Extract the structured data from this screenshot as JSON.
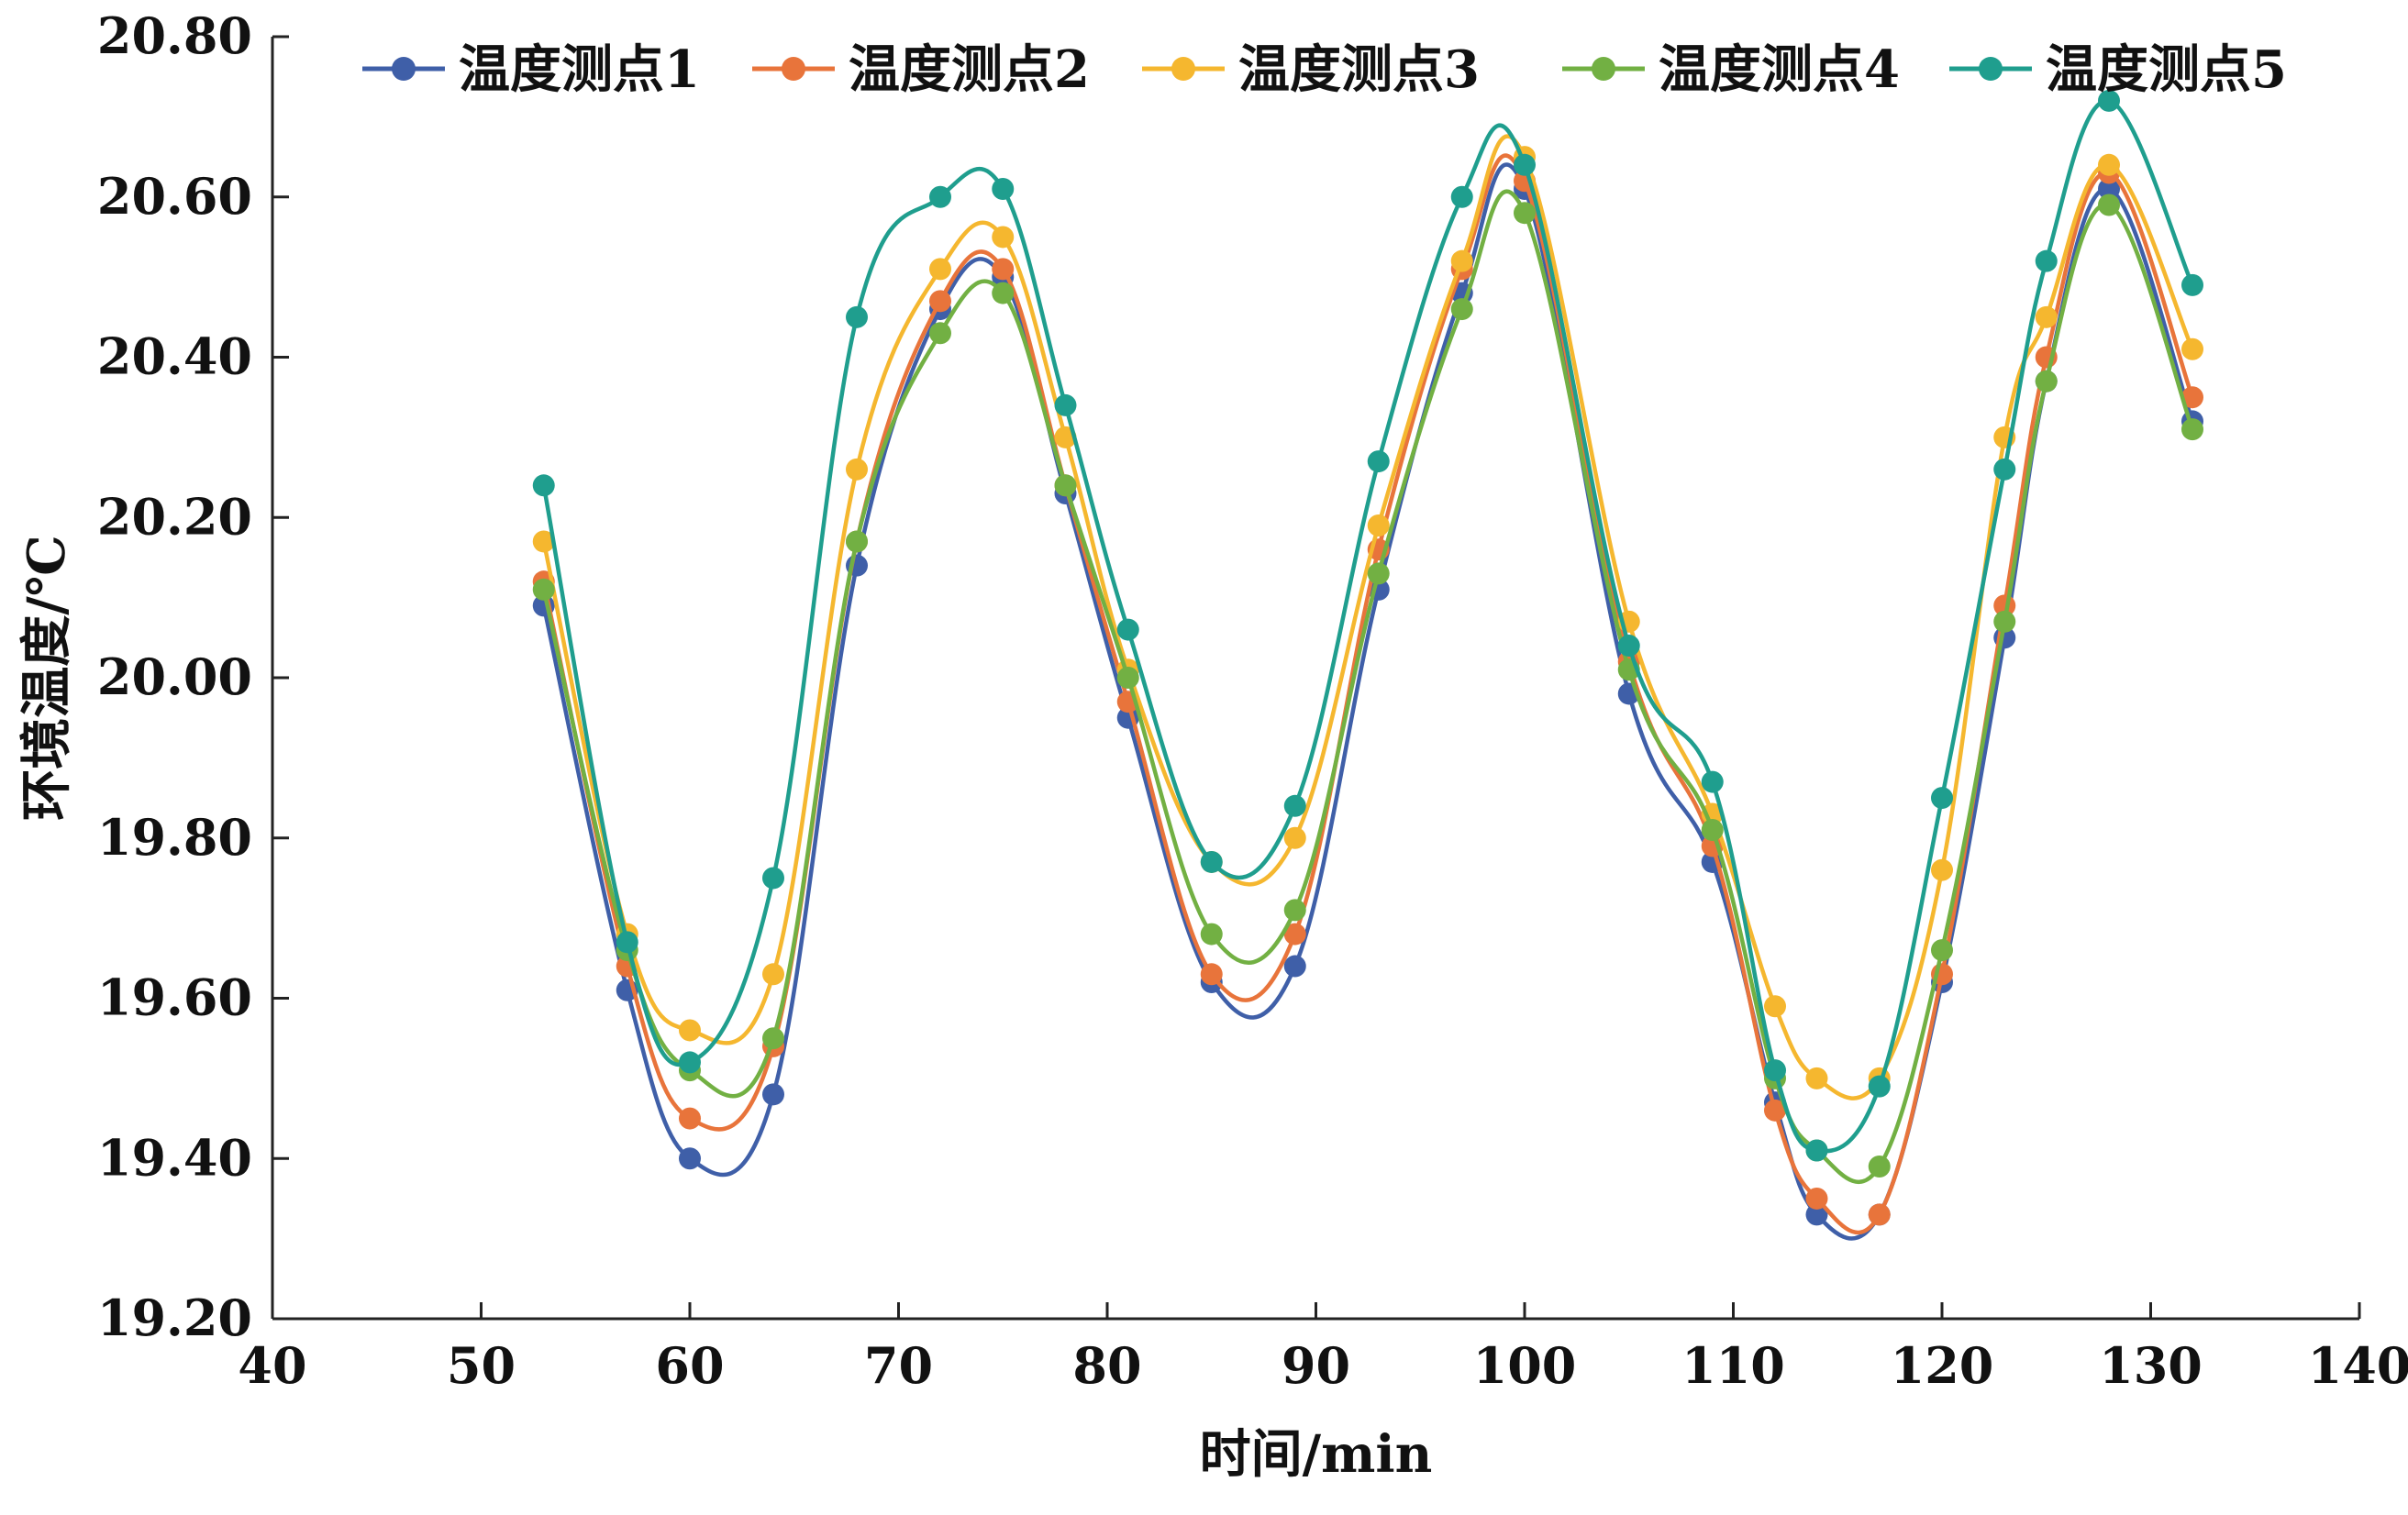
{
  "chart_data": {
    "type": "line",
    "title": "",
    "xlabel": "时间/min",
    "ylabel": "环境温度/℃",
    "xlim": [
      40,
      140
    ],
    "ylim": [
      19.2,
      20.8
    ],
    "x_ticks": [
      "40",
      "50",
      "60",
      "70",
      "80",
      "90",
      "100",
      "110",
      "120",
      "130",
      "140"
    ],
    "y_ticks": [
      "19.20",
      "19.40",
      "19.60",
      "19.80",
      "20.00",
      "20.20",
      "20.40",
      "20.60",
      "20.80"
    ],
    "grid": false,
    "legend_position": "top",
    "x": [
      53,
      57,
      60,
      64,
      68,
      72,
      75,
      78,
      81,
      85,
      89,
      93,
      97,
      100,
      105,
      109,
      112,
      114,
      117,
      120,
      123,
      125,
      128,
      132
    ],
    "series": [
      {
        "name": "温度测点1",
        "color": "#3f5fa8",
        "values": [
          20.09,
          19.61,
          19.4,
          19.48,
          20.14,
          20.46,
          20.5,
          20.23,
          19.95,
          19.62,
          19.64,
          20.11,
          20.48,
          20.61,
          19.98,
          19.77,
          19.47,
          19.33,
          19.33,
          19.62,
          20.05,
          20.37,
          20.61,
          20.32
        ]
      },
      {
        "name": "温度测点2",
        "color": "#e8743b",
        "values": [
          20.12,
          19.64,
          19.45,
          19.54,
          20.17,
          20.47,
          20.51,
          20.24,
          19.97,
          19.63,
          19.68,
          20.16,
          20.51,
          20.62,
          20.02,
          19.79,
          19.46,
          19.35,
          19.33,
          19.63,
          20.09,
          20.4,
          20.63,
          20.35
        ]
      },
      {
        "name": "温度测点3",
        "color": "#f5b72f",
        "values": [
          20.17,
          19.68,
          19.56,
          19.63,
          20.26,
          20.51,
          20.55,
          20.3,
          20.01,
          19.77,
          19.8,
          20.19,
          20.52,
          20.65,
          20.07,
          19.83,
          19.59,
          19.5,
          19.5,
          19.76,
          20.3,
          20.45,
          20.64,
          20.41
        ]
      },
      {
        "name": "温度测点4",
        "color": "#72b043",
        "values": [
          20.11,
          19.66,
          19.51,
          19.55,
          20.17,
          20.43,
          20.48,
          20.24,
          20.0,
          19.68,
          19.71,
          20.13,
          20.46,
          20.58,
          20.01,
          19.81,
          19.5,
          19.41,
          19.39,
          19.66,
          20.07,
          20.37,
          20.59,
          20.31
        ]
      },
      {
        "name": "温度测点5",
        "color": "#1f9e8e",
        "values": [
          20.24,
          19.67,
          19.52,
          19.75,
          20.45,
          20.6,
          20.61,
          20.34,
          20.06,
          19.77,
          19.84,
          20.27,
          20.6,
          20.64,
          20.04,
          19.87,
          19.51,
          19.41,
          19.49,
          19.85,
          20.26,
          20.52,
          20.72,
          20.49
        ]
      }
    ]
  }
}
